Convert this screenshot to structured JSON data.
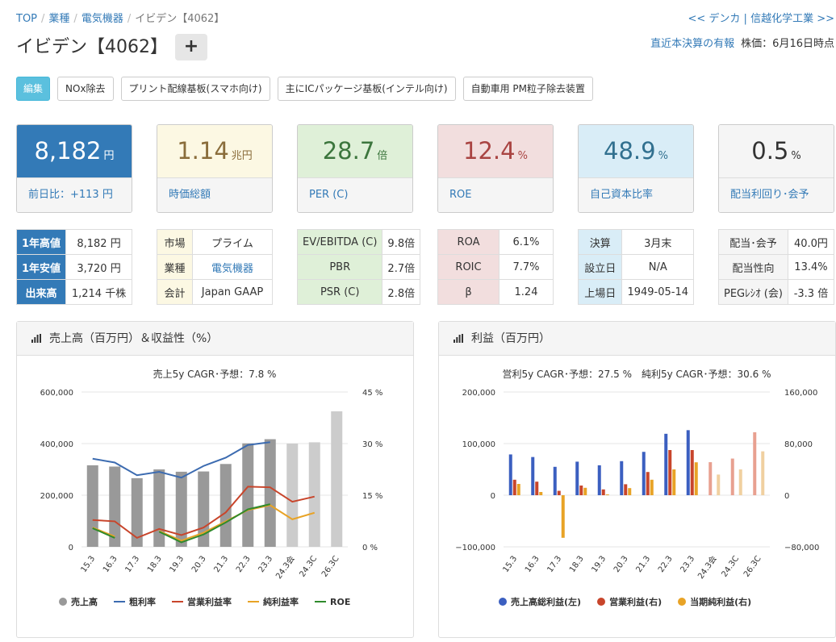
{
  "breadcrumb": {
    "top": "TOP",
    "sector": "業種",
    "industry": "電気機器",
    "current": "イビデン【4062】"
  },
  "nav": {
    "prev": "<< デンカ",
    "divider": "|",
    "next": "信越化学工業 >>"
  },
  "company": {
    "title": "イビデン【4062】",
    "add_label": "+"
  },
  "header_links": {
    "filing": "直近本決算の有報",
    "price_date": "株価：6月16日時点"
  },
  "tags": {
    "edit": "編集",
    "items": [
      "NOx除去",
      "プリント配線基板(スマホ向け)",
      "主にICパッケージ基板(インテル向け)",
      "自動車用 PM粒子除去装置"
    ]
  },
  "cards": [
    {
      "value": "8,182",
      "unit": "円",
      "label": "前日比：+113 円",
      "color": "#ffffff",
      "bg": "#337ab7"
    },
    {
      "value": "1.14",
      "unit": "兆円",
      "label": "時価総額",
      "color": "#8a6d3b",
      "bg": "#fcf8e3"
    },
    {
      "value": "28.7",
      "unit": "倍",
      "label": "PER (C)",
      "color": "#3c763d",
      "bg": "#dff0d8"
    },
    {
      "value": "12.4",
      "unit": "%",
      "label": "ROE",
      "color": "#a94442",
      "bg": "#f2dede"
    },
    {
      "value": "48.9",
      "unit": "%",
      "label": "自己資本比率",
      "color": "#31708f",
      "bg": "#d9edf7"
    },
    {
      "value": "0.5",
      "unit": "%",
      "label": "配当利回り･会予",
      "color": "#333333",
      "bg": "#f5f5f5"
    }
  ],
  "tables": [
    [
      [
        "1年高値",
        "8,182 円"
      ],
      [
        "1年安値",
        "3,720 円"
      ],
      [
        "出来高",
        "1,214 千株"
      ]
    ],
    [
      [
        "市場",
        "プライム"
      ],
      [
        "業種",
        "電気機器"
      ],
      [
        "会計",
        "Japan GAAP"
      ]
    ],
    [
      [
        "EV/EBITDA (C)",
        "9.8倍"
      ],
      [
        "PBR",
        "2.7倍"
      ],
      [
        "PSR (C)",
        "2.8倍"
      ]
    ],
    [
      [
        "ROA",
        "6.1%"
      ],
      [
        "ROIC",
        "7.7%"
      ],
      [
        "β",
        "1.24"
      ]
    ],
    [
      [
        "決算",
        "3月末"
      ],
      [
        "設立日",
        "N/A"
      ],
      [
        "上場日",
        "1949-05-14"
      ]
    ],
    [
      [
        "配当･会予",
        "40.0円"
      ],
      [
        "配当性向",
        "13.4%"
      ],
      [
        "PEGﾚｼｵ (会)",
        "-3.3 倍"
      ]
    ]
  ],
  "chart_data": [
    {
      "type": "bar",
      "title": "売上高（百万円）＆収益性（%）",
      "subtitle": "売上5y CAGR･予想：7.8 %",
      "categories": [
        "15.3",
        "16.3",
        "17.3",
        "18.3",
        "19.3",
        "20.3",
        "21.3",
        "22.3",
        "23.3",
        "24.3会",
        "24.3C",
        "26.3C"
      ],
      "y_left": {
        "min": 0,
        "max": 600000,
        "ticks": [
          "0",
          "200,000",
          "400,000",
          "600,000"
        ]
      },
      "y_right": {
        "min": 0,
        "max": 45,
        "ticks": [
          "0 %",
          "15 %",
          "30 %",
          "45 %"
        ]
      },
      "bars": {
        "name": "売上高",
        "values": [
          316000,
          311000,
          266000,
          300000,
          291000,
          292000,
          321000,
          401000,
          417000,
          400000,
          405000,
          525000
        ],
        "forecast_from": 9,
        "color": "#999999",
        "forecast_color": "#cccccc"
      },
      "lines": [
        {
          "name": "粗利率",
          "color": "#3c6bb0",
          "values": [
            25.6,
            24.5,
            20.8,
            21.8,
            20.1,
            23.5,
            25.9,
            29.6,
            30.4,
            null,
            null,
            null
          ]
        },
        {
          "name": "営業利益率",
          "color": "#c8452b",
          "values": [
            7.8,
            7.4,
            2.6,
            5.2,
            3.4,
            5.6,
            10.0,
            17.5,
            17.3,
            13.1,
            14.6,
            null
          ]
        },
        {
          "name": "純利益率",
          "color": "#e8a326",
          "values": [
            5.6,
            3.0,
            null,
            4.6,
            1.8,
            4.1,
            7.4,
            10.7,
            12.1,
            8.0,
            9.9,
            null
          ]
        },
        {
          "name": "ROE",
          "color": "#2f8a2c",
          "values": [
            5.4,
            2.6,
            null,
            4.4,
            1.3,
            3.6,
            7.1,
            10.9,
            12.4,
            null,
            null,
            null
          ]
        }
      ]
    },
    {
      "type": "bar",
      "title": "利益（百万円）",
      "subtitle": "営利5y CAGR･予想：27.5 %　純利5y CAGR･予想：30.6 %",
      "categories": [
        "15.3",
        "16.3",
        "17.3",
        "18.3",
        "19.3",
        "20.3",
        "21.3",
        "22.3",
        "23.3",
        "24.3会",
        "24.3C",
        "26.3C"
      ],
      "y_left": {
        "min": -100000,
        "max": 200000,
        "ticks": [
          "−100,000",
          "0",
          "100,000",
          "200,000"
        ]
      },
      "y_right": {
        "min": -80000,
        "max": 160000,
        "ticks": [
          "−80,000",
          "0",
          "80,000",
          "160,000"
        ]
      },
      "series": [
        {
          "name": "売上高総利益(左)",
          "color": "#3b5fc0",
          "forecast_color": "#e8a090",
          "axis": "left",
          "values": [
            79000,
            74000,
            55000,
            65000,
            58000,
            66000,
            84000,
            119000,
            126000,
            64000,
            71000,
            122000
          ]
        },
        {
          "name": "営業利益(右)",
          "color": "#c8452b",
          "forecast_color": "#e8a090",
          "axis": "right",
          "values": [
            24000,
            21000,
            6800,
            15000,
            9000,
            17000,
            36000,
            70000,
            70000,
            null,
            null,
            null
          ]
        },
        {
          "name": "当期純利益(右)",
          "color": "#e8a326",
          "forecast_color": "#f0d0a0",
          "axis": "right",
          "values": [
            17500,
            5000,
            -66000,
            11500,
            1200,
            11000,
            24000,
            40000,
            51000,
            32000,
            40000,
            68000
          ]
        }
      ],
      "forecast_from": 9
    }
  ]
}
